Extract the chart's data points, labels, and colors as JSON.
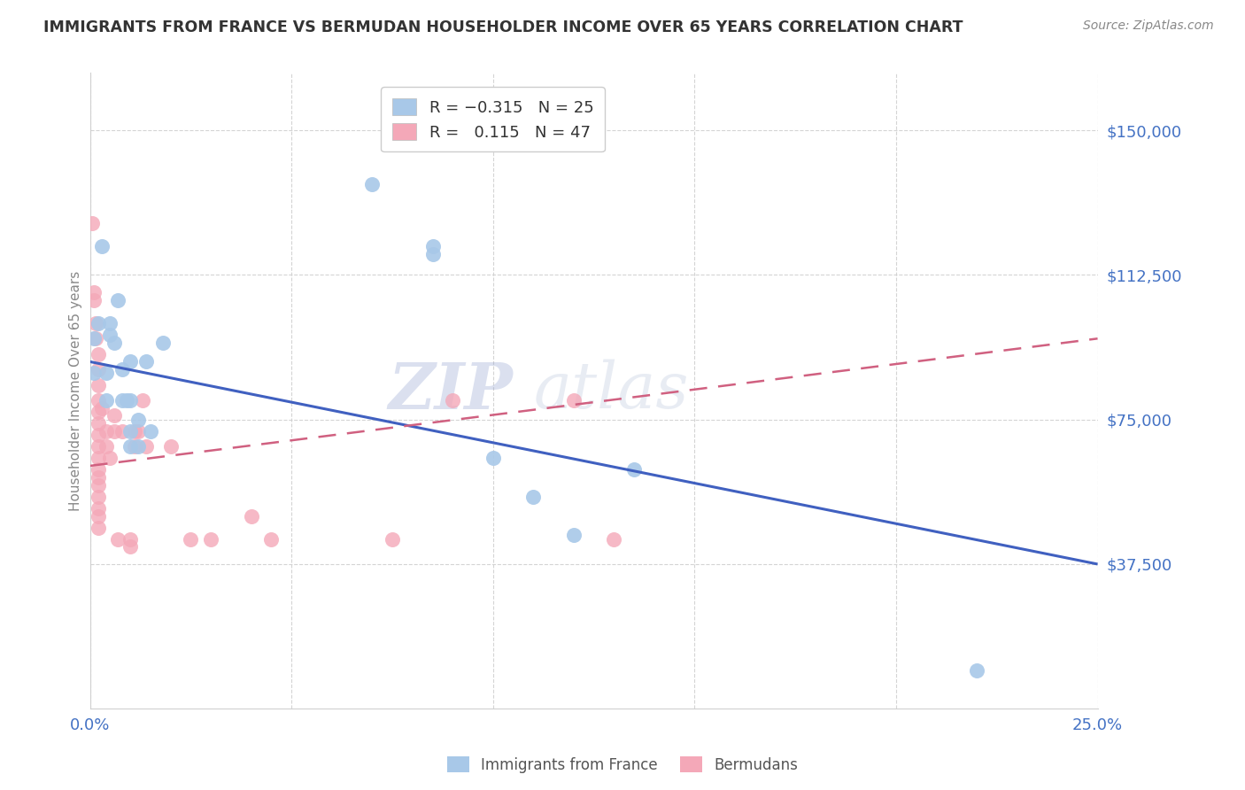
{
  "title": "IMMIGRANTS FROM FRANCE VS BERMUDAN HOUSEHOLDER INCOME OVER 65 YEARS CORRELATION CHART",
  "source": "Source: ZipAtlas.com",
  "ylabel": "Householder Income Over 65 years",
  "xlim": [
    0.0,
    0.25
  ],
  "ylim": [
    0,
    165000
  ],
  "yticks": [
    37500,
    75000,
    112500,
    150000
  ],
  "ytick_labels": [
    "$37,500",
    "$75,000",
    "$112,500",
    "$150,000"
  ],
  "xticks": [
    0.0,
    0.05,
    0.1,
    0.15,
    0.2,
    0.25
  ],
  "xtick_labels": [
    "0.0%",
    "",
    "",
    "",
    "",
    "25.0%"
  ],
  "label1": "Immigrants from France",
  "label2": "Bermudans",
  "color1": "#a8c8e8",
  "color2": "#f4a8b8",
  "line1_color": "#4060c0",
  "line2_color": "#d06080",
  "blue_line_x": [
    0.0,
    0.25
  ],
  "blue_line_y": [
    90000,
    37500
  ],
  "pink_line_x": [
    0.0,
    0.25
  ],
  "pink_line_y": [
    63000,
    96000
  ],
  "blue_scatter": [
    [
      0.001,
      96000
    ],
    [
      0.001,
      87000
    ],
    [
      0.002,
      100000
    ],
    [
      0.003,
      120000
    ],
    [
      0.004,
      87000
    ],
    [
      0.004,
      80000
    ],
    [
      0.005,
      100000
    ],
    [
      0.005,
      97000
    ],
    [
      0.006,
      95000
    ],
    [
      0.007,
      106000
    ],
    [
      0.008,
      88000
    ],
    [
      0.008,
      80000
    ],
    [
      0.009,
      80000
    ],
    [
      0.01,
      90000
    ],
    [
      0.01,
      80000
    ],
    [
      0.01,
      72000
    ],
    [
      0.01,
      68000
    ],
    [
      0.012,
      75000
    ],
    [
      0.012,
      68000
    ],
    [
      0.014,
      90000
    ],
    [
      0.015,
      72000
    ],
    [
      0.018,
      95000
    ],
    [
      0.07,
      136000
    ],
    [
      0.085,
      120000
    ],
    [
      0.085,
      118000
    ],
    [
      0.1,
      65000
    ],
    [
      0.11,
      55000
    ],
    [
      0.12,
      45000
    ],
    [
      0.135,
      62000
    ],
    [
      0.22,
      10000
    ]
  ],
  "pink_scatter": [
    [
      0.0005,
      126000
    ],
    [
      0.001,
      108000
    ],
    [
      0.001,
      106000
    ],
    [
      0.0015,
      100000
    ],
    [
      0.0015,
      96000
    ],
    [
      0.002,
      92000
    ],
    [
      0.002,
      88000
    ],
    [
      0.002,
      84000
    ],
    [
      0.002,
      80000
    ],
    [
      0.002,
      77000
    ],
    [
      0.002,
      74000
    ],
    [
      0.002,
      71000
    ],
    [
      0.002,
      68000
    ],
    [
      0.002,
      65000
    ],
    [
      0.002,
      62000
    ],
    [
      0.002,
      60000
    ],
    [
      0.002,
      58000
    ],
    [
      0.002,
      55000
    ],
    [
      0.002,
      52000
    ],
    [
      0.002,
      50000
    ],
    [
      0.002,
      47000
    ],
    [
      0.003,
      78000
    ],
    [
      0.004,
      72000
    ],
    [
      0.004,
      68000
    ],
    [
      0.005,
      65000
    ],
    [
      0.006,
      76000
    ],
    [
      0.006,
      72000
    ],
    [
      0.007,
      44000
    ],
    [
      0.008,
      72000
    ],
    [
      0.01,
      44000
    ],
    [
      0.01,
      42000
    ],
    [
      0.011,
      72000
    ],
    [
      0.011,
      68000
    ],
    [
      0.012,
      72000
    ],
    [
      0.013,
      80000
    ],
    [
      0.014,
      68000
    ],
    [
      0.02,
      68000
    ],
    [
      0.025,
      44000
    ],
    [
      0.03,
      44000
    ],
    [
      0.04,
      50000
    ],
    [
      0.045,
      44000
    ],
    [
      0.075,
      44000
    ],
    [
      0.09,
      80000
    ],
    [
      0.12,
      80000
    ],
    [
      0.13,
      44000
    ]
  ],
  "background_color": "#ffffff",
  "grid_color": "#d0d0d0",
  "title_color": "#333333",
  "tick_label_color": "#4472c4",
  "ylabel_color": "#888888",
  "source_color": "#888888"
}
